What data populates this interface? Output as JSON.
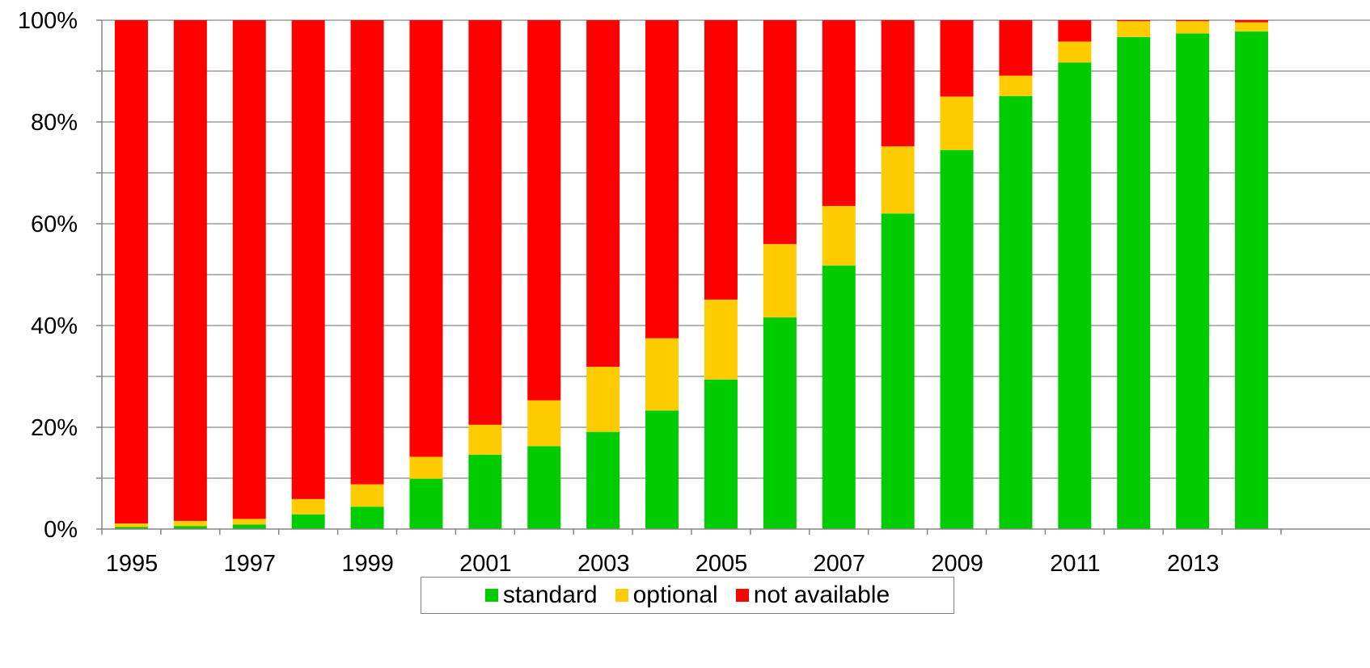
{
  "chart_data": {
    "type": "bar",
    "stacked": true,
    "title": "",
    "xlabel": "",
    "ylabel": "",
    "categories": [
      "1995",
      "1996",
      "1997",
      "1998",
      "1999",
      "2000",
      "2001",
      "2002",
      "2003",
      "2004",
      "2005",
      "2006",
      "2007",
      "2008",
      "2009",
      "2010",
      "2011",
      "2012",
      "2013",
      "2014"
    ],
    "x_tick_labels": [
      "1995",
      "1997",
      "1999",
      "2001",
      "2003",
      "2005",
      "2007",
      "2009",
      "2011",
      "2013"
    ],
    "y_tick_labels": [
      "0%",
      "20%",
      "40%",
      "60%",
      "80%",
      "100%"
    ],
    "ylim": [
      0,
      100
    ],
    "grid": true,
    "legend_position": "bottom",
    "series": [
      {
        "name": "standard",
        "color": "#00cc00",
        "values": [
          0.4,
          0.6,
          0.9,
          2.9,
          4.4,
          9.9,
          14.6,
          16.3,
          19.1,
          23.3,
          29.4,
          41.6,
          51.8,
          62.0,
          74.5,
          85.1,
          91.7,
          96.7,
          97.4,
          97.8
        ]
      },
      {
        "name": "optional",
        "color": "#ffcc00",
        "values": [
          0.7,
          1.0,
          1.1,
          3.0,
          4.4,
          4.3,
          5.9,
          9.0,
          12.8,
          14.2,
          15.7,
          14.4,
          11.7,
          13.2,
          10.5,
          4.0,
          4.1,
          3.1,
          2.4,
          1.8
        ]
      },
      {
        "name": "not available",
        "color": "#ff0000",
        "values": [
          98.9,
          98.4,
          98.0,
          94.1,
          91.2,
          85.8,
          79.5,
          74.7,
          68.1,
          62.5,
          54.9,
          44.0,
          36.5,
          24.8,
          15.0,
          10.9,
          4.2,
          0.2,
          0.2,
          0.4
        ]
      }
    ]
  }
}
